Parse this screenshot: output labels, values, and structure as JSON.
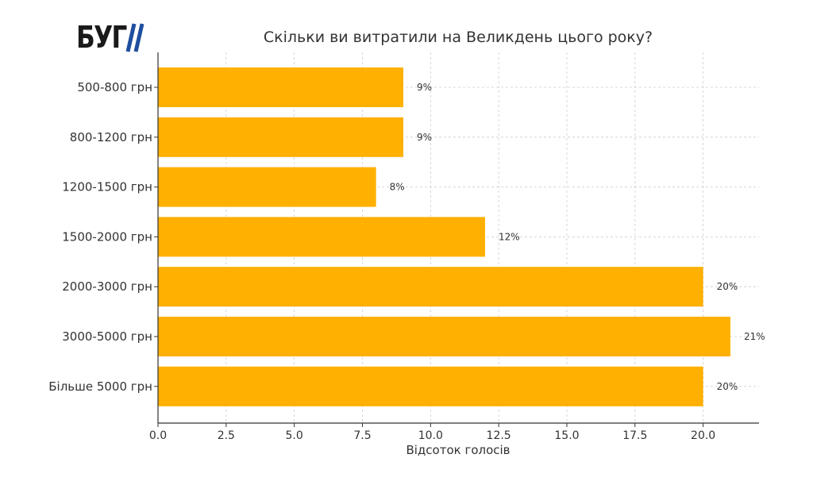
{
  "logo": {
    "text": "БУГ",
    "slash_color": "#1f4e9e"
  },
  "chart_data": {
    "type": "bar",
    "orientation": "horizontal",
    "title": "Скільки ви витратили на Великдень цього року?",
    "xlabel": "Відсоток голосів",
    "ylabel": "",
    "categories": [
      "500-800 грн",
      "800-1200 грн",
      "1200-1500 грн",
      "1500-2000 грн",
      "2000-3000 грн",
      "3000-5000 грн",
      "Більше 5000 грн"
    ],
    "values": [
      9,
      9,
      8,
      12,
      20,
      21,
      20
    ],
    "data_labels": [
      "9%",
      "9%",
      "8%",
      "12%",
      "20%",
      "21%",
      "20%"
    ],
    "xlim": [
      0,
      22.05
    ],
    "xticks": [
      0,
      2.5,
      5,
      7.5,
      10,
      12.5,
      15,
      17.5,
      20
    ],
    "xtick_labels": [
      "0.0",
      "2.5",
      "5.0",
      "7.5",
      "10.0",
      "12.5",
      "15.0",
      "17.5",
      "20.0"
    ],
    "grid": true,
    "bar_color": "#ffb000",
    "grid_color": "#cccccc"
  }
}
